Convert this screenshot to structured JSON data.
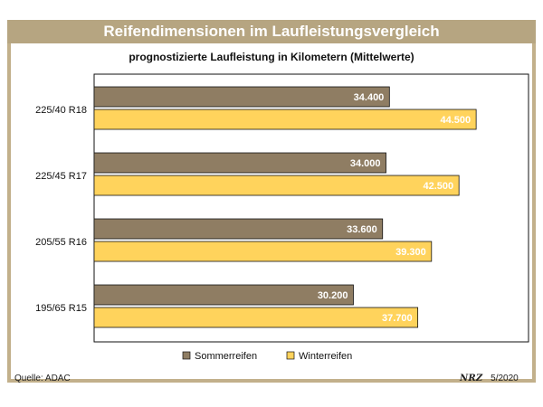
{
  "title": "Reifendimensionen im Laufleistungsvergleich",
  "subtitle": "prognostizierte Laufleistung in Kilometern (Mittelwerte)",
  "source": "Quelle: ADAC",
  "publisher_logo": "NRZ",
  "date": "5/2020",
  "colors": {
    "title_bar": "#b6a581",
    "frame": "#c2b08b",
    "sommerreifen": "#8f7d63",
    "winterreifen": "#ffd35c",
    "bar_label": "#ffffff"
  },
  "chart_data": {
    "type": "bar",
    "orientation": "horizontal",
    "title": "Reifendimensionen im Laufleistungsvergleich",
    "subtitle": "prognostizierte Laufleistung in Kilometern (Mittelwerte)",
    "categories": [
      "225/40 R18",
      "225/45 R17",
      "205/55 R16",
      "195/65 R15"
    ],
    "series": [
      {
        "name": "Sommerreifen",
        "values": [
          34400,
          34000,
          33600,
          30200
        ],
        "labels": [
          "34.400",
          "34.000",
          "33.600",
          "30.200"
        ],
        "color": "#8f7d63"
      },
      {
        "name": "Winterreifen",
        "values": [
          44500,
          42500,
          39300,
          37700
        ],
        "labels": [
          "44.500",
          "42.500",
          "39.300",
          "37.700"
        ],
        "color": "#ffd35c"
      }
    ],
    "xlim": [
      0,
      50600
    ],
    "grid": false,
    "legend": "bottom-center",
    "xlabel": "",
    "ylabel": ""
  }
}
